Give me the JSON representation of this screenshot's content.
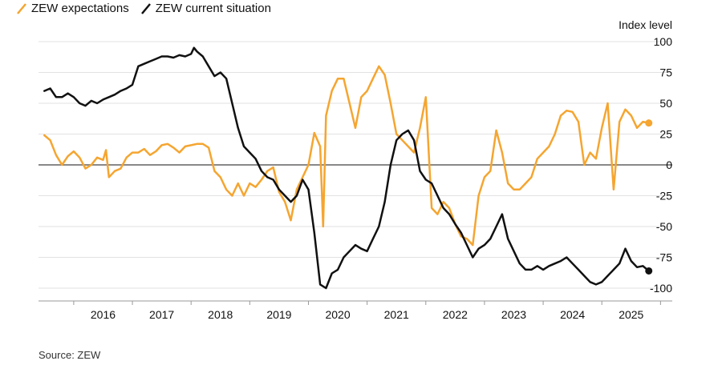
{
  "legend": [
    {
      "label": "ZEW expectations",
      "color": "#f5a530"
    },
    {
      "label": "ZEW current situation",
      "color": "#111111"
    }
  ],
  "source": "Source: ZEW",
  "chart_data": {
    "type": "line",
    "title": "",
    "ylabel": "Index level",
    "ylim": [
      -100,
      100
    ],
    "yticks": [
      100,
      75,
      50,
      25,
      0,
      -25,
      -50,
      -75,
      -100
    ],
    "xlim": [
      2015.4,
      2026.2
    ],
    "xticks": [
      "2016",
      "2017",
      "2018",
      "2019",
      "2020",
      "2021",
      "2022",
      "2023",
      "2024",
      "2025"
    ],
    "grid": true,
    "legend_position": "top-left",
    "series": [
      {
        "name": "ZEW expectations",
        "color": "#f5a530",
        "end_marker": true,
        "x": [
          2015.5,
          2015.6,
          2015.7,
          2015.8,
          2015.9,
          2016.0,
          2016.1,
          2016.2,
          2016.3,
          2016.4,
          2016.5,
          2016.55,
          2016.6,
          2016.7,
          2016.8,
          2016.9,
          2017.0,
          2017.1,
          2017.2,
          2017.3,
          2017.4,
          2017.5,
          2017.6,
          2017.7,
          2017.8,
          2017.9,
          2018.0,
          2018.1,
          2018.2,
          2018.3,
          2018.4,
          2018.5,
          2018.6,
          2018.7,
          2018.8,
          2018.9,
          2019.0,
          2019.1,
          2019.2,
          2019.3,
          2019.4,
          2019.5,
          2019.6,
          2019.7,
          2019.8,
          2019.9,
          2020.0,
          2020.1,
          2020.2,
          2020.25,
          2020.3,
          2020.4,
          2020.5,
          2020.6,
          2020.7,
          2020.8,
          2020.9,
          2021.0,
          2021.1,
          2021.2,
          2021.3,
          2021.4,
          2021.5,
          2021.6,
          2021.7,
          2021.8,
          2021.9,
          2022.0,
          2022.1,
          2022.2,
          2022.3,
          2022.4,
          2022.5,
          2022.6,
          2022.7,
          2022.8,
          2022.9,
          2023.0,
          2023.1,
          2023.2,
          2023.3,
          2023.4,
          2023.5,
          2023.6,
          2023.7,
          2023.8,
          2023.9,
          2024.0,
          2024.1,
          2024.2,
          2024.3,
          2024.4,
          2024.5,
          2024.6,
          2024.7,
          2024.8,
          2024.9,
          2025.0,
          2025.1,
          2025.2,
          2025.3,
          2025.4,
          2025.5,
          2025.6,
          2025.7,
          2025.8
        ],
        "values": [
          24,
          20,
          8,
          0,
          7,
          11,
          6,
          -3,
          0,
          6,
          4,
          12,
          -10,
          -5,
          -3,
          6,
          10,
          10,
          13,
          8,
          11,
          16,
          17,
          14,
          10,
          15,
          16,
          17,
          17,
          14,
          -5,
          -10,
          -20,
          -25,
          -15,
          -25,
          -15,
          -18,
          -12,
          -5,
          -2,
          -22,
          -30,
          -45,
          -20,
          -10,
          0,
          26,
          15,
          -50,
          40,
          60,
          70,
          70,
          50,
          30,
          55,
          60,
          70,
          80,
          73,
          50,
          25,
          20,
          15,
          10,
          30,
          55,
          -35,
          -40,
          -30,
          -35,
          -48,
          -58,
          -60,
          -65,
          -25,
          -10,
          -5,
          28,
          10,
          -15,
          -20,
          -20,
          -15,
          -10,
          5,
          10,
          15,
          25,
          40,
          44,
          43,
          35,
          0,
          10,
          5,
          30,
          50,
          -20,
          35,
          45,
          40,
          30,
          35,
          34
        ]
      },
      {
        "name": "ZEW current situation",
        "color": "#111111",
        "end_marker": true,
        "x": [
          2015.5,
          2015.6,
          2015.7,
          2015.8,
          2015.9,
          2016.0,
          2016.1,
          2016.2,
          2016.3,
          2016.4,
          2016.5,
          2016.6,
          2016.7,
          2016.8,
          2016.9,
          2017.0,
          2017.1,
          2017.2,
          2017.3,
          2017.4,
          2017.5,
          2017.6,
          2017.7,
          2017.8,
          2017.9,
          2018.0,
          2018.05,
          2018.1,
          2018.2,
          2018.3,
          2018.4,
          2018.5,
          2018.6,
          2018.7,
          2018.8,
          2018.9,
          2019.0,
          2019.1,
          2019.2,
          2019.3,
          2019.4,
          2019.5,
          2019.6,
          2019.7,
          2019.8,
          2019.9,
          2020.0,
          2020.1,
          2020.2,
          2020.3,
          2020.4,
          2020.5,
          2020.6,
          2020.7,
          2020.8,
          2020.9,
          2021.0,
          2021.1,
          2021.2,
          2021.3,
          2021.4,
          2021.5,
          2021.6,
          2021.7,
          2021.8,
          2021.9,
          2022.0,
          2022.1,
          2022.2,
          2022.3,
          2022.4,
          2022.5,
          2022.6,
          2022.7,
          2022.8,
          2022.9,
          2023.0,
          2023.1,
          2023.2,
          2023.3,
          2023.4,
          2023.5,
          2023.6,
          2023.7,
          2023.8,
          2023.9,
          2024.0,
          2024.1,
          2024.2,
          2024.3,
          2024.4,
          2024.5,
          2024.6,
          2024.7,
          2024.8,
          2024.9,
          2025.0,
          2025.1,
          2025.2,
          2025.3,
          2025.4,
          2025.5,
          2025.6,
          2025.7,
          2025.8
        ],
        "values": [
          60,
          62,
          55,
          55,
          58,
          55,
          50,
          48,
          52,
          50,
          53,
          55,
          57,
          60,
          62,
          65,
          80,
          82,
          84,
          86,
          88,
          88,
          87,
          89,
          88,
          90,
          95,
          92,
          88,
          80,
          72,
          75,
          70,
          50,
          30,
          15,
          10,
          5,
          -5,
          -10,
          -12,
          -20,
          -25,
          -30,
          -25,
          -12,
          -20,
          -55,
          -97,
          -100,
          -88,
          -85,
          -75,
          -70,
          -65,
          -68,
          -70,
          -60,
          -50,
          -30,
          0,
          20,
          25,
          28,
          20,
          -5,
          -12,
          -15,
          -25,
          -35,
          -40,
          -48,
          -55,
          -65,
          -75,
          -68,
          -65,
          -60,
          -50,
          -40,
          -60,
          -70,
          -80,
          -85,
          -85,
          -82,
          -85,
          -82,
          -80,
          -78,
          -75,
          -80,
          -85,
          -90,
          -95,
          -97,
          -95,
          -90,
          -85,
          -80,
          -68,
          -78,
          -83,
          -82,
          -86
        ]
      }
    ]
  }
}
